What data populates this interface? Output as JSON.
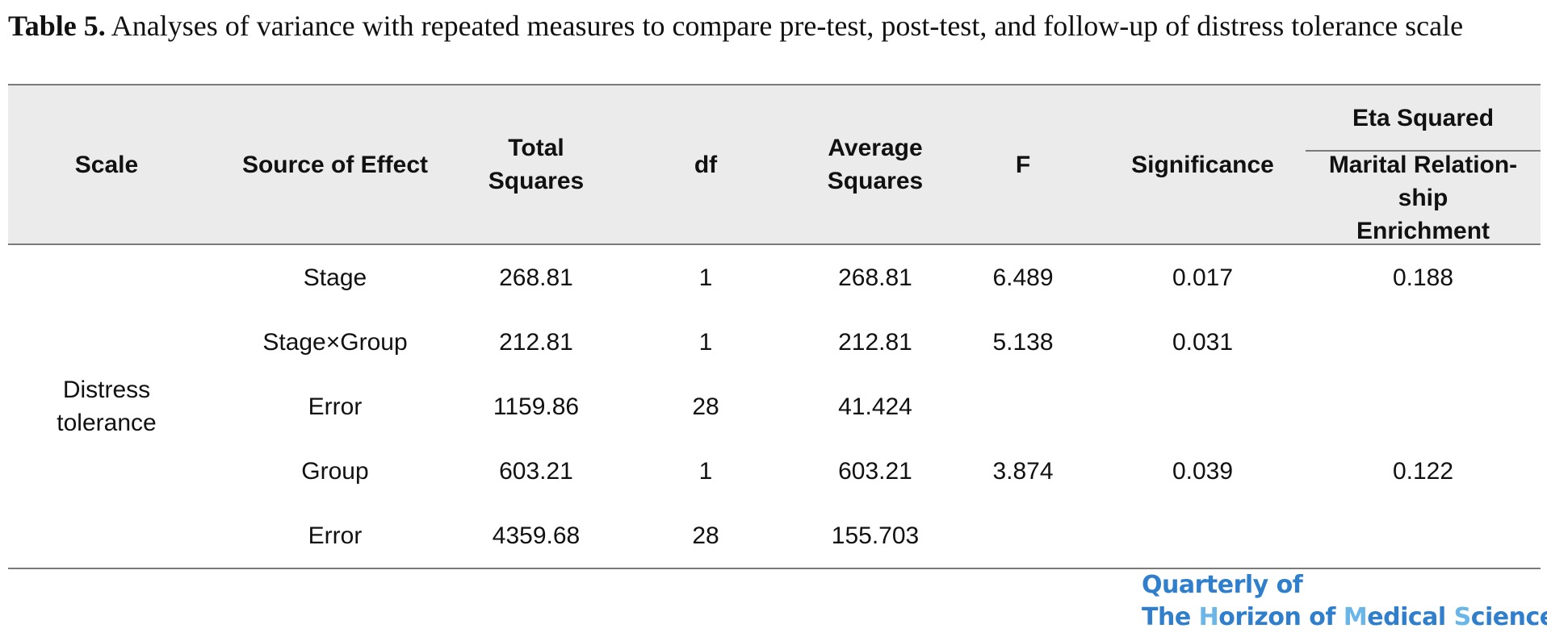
{
  "caption": {
    "label": "Table 5.",
    "text": " Analyses of variance with repeated measures to compare pre-test, post-test, and follow-up of distress tolerance scale"
  },
  "table": {
    "headers": {
      "scale": "Scale",
      "source": "Source of Effect",
      "total_squares": "Total Squares",
      "df": "df",
      "average_squares": "Average Squares",
      "f": "F",
      "significance": "Significance",
      "eta_squared": "Eta Squared",
      "eta_sub": "Marital Relation-ship Enrichment"
    },
    "scale_value": "Distress tolerance",
    "rows": [
      {
        "source": "Stage",
        "total_squares": "268.81",
        "df": "1",
        "average_squares": "268.81",
        "f": "6.489",
        "significance": "0.017",
        "eta": "0.188"
      },
      {
        "source": "Stage×Group",
        "total_squares": "212.81",
        "df": "1",
        "average_squares": "212.81",
        "f": "5.138",
        "significance": "0.031",
        "eta": ""
      },
      {
        "source": "Error",
        "total_squares": "1159.86",
        "df": "28",
        "average_squares": "41.424",
        "f": "",
        "significance": "",
        "eta": ""
      },
      {
        "source": "Group",
        "total_squares": "603.21",
        "df": "1",
        "average_squares": "603.21",
        "f": "3.874",
        "significance": "0.039",
        "eta": "0.122"
      },
      {
        "source": "Error",
        "total_squares": "4359.68",
        "df": "28",
        "average_squares": "155.703",
        "f": "",
        "significance": "",
        "eta": ""
      }
    ]
  },
  "logo": {
    "line1": "Quarterly of",
    "line2_a": "The ",
    "line2_h": "H",
    "line2_b": "orizon of ",
    "line2_m": "M",
    "line2_c": "edical ",
    "line2_s": "S",
    "line2_d": "ciences",
    "colors": {
      "primary": "#2f7fcc",
      "accent": "#6ab6e8"
    }
  }
}
